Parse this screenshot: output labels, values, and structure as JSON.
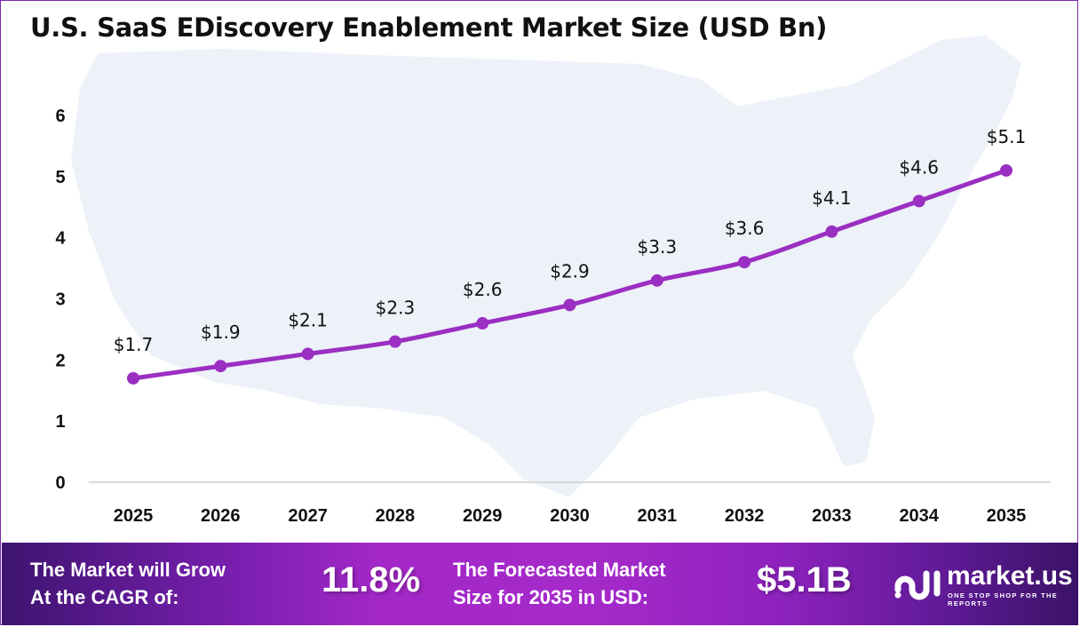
{
  "title": "U.S. SaaS EDiscovery Enablement Market Size (USD Bn)",
  "chart_data": {
    "type": "line",
    "title": "U.S. SaaS EDiscovery Enablement Market Size (USD Bn)",
    "categories": [
      "2025",
      "2026",
      "2027",
      "2028",
      "2029",
      "2030",
      "2031",
      "2032",
      "2033",
      "2034",
      "2035"
    ],
    "values": [
      1.7,
      1.9,
      2.1,
      2.3,
      2.6,
      2.9,
      3.3,
      3.6,
      4.1,
      4.6,
      5.1
    ],
    "data_labels": [
      "$1.7",
      "$1.9",
      "$2.1",
      "$2.3",
      "$2.6",
      "$2.9",
      "$3.3",
      "$3.6",
      "$4.1",
      "$4.6",
      "$5.1"
    ],
    "ylim": [
      0,
      6
    ],
    "yticks": [
      "0",
      "1",
      "2",
      "3",
      "4",
      "5",
      "6"
    ],
    "grid": false,
    "line_color": "#9b2fc2"
  },
  "footer": {
    "cagr_label_line1": "The Market will Grow",
    "cagr_label_line2": "At the CAGR of:",
    "cagr_value": "11.8%",
    "forecast_label_line1": "The Forecasted Market",
    "forecast_label_line2": "Size for 2035 in USD:",
    "forecast_value": "$5.1B"
  },
  "logo": {
    "name": "market.us",
    "tagline": "ONE STOP SHOP FOR THE REPORTS"
  }
}
